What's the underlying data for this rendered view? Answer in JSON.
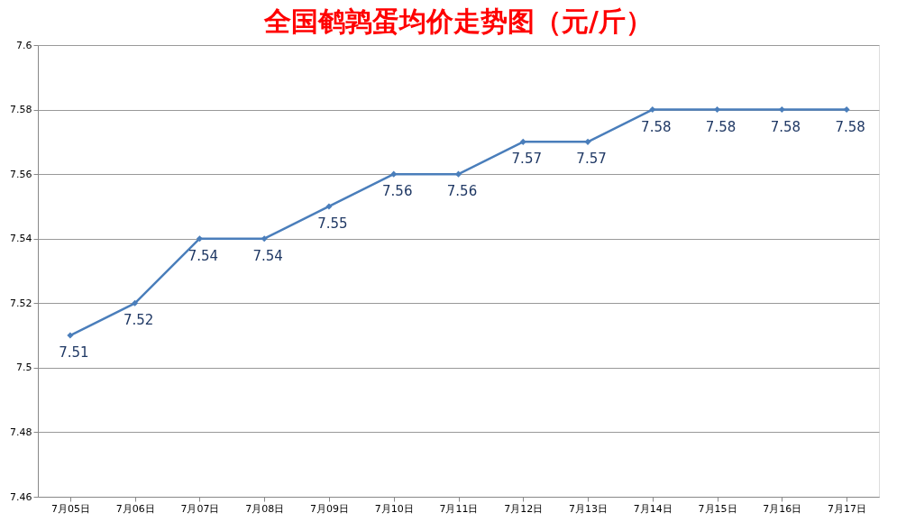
{
  "chart_data": {
    "type": "line",
    "title": "全国鹌鹑蛋均价走势图（元/斤）",
    "categories": [
      "7月05日",
      "7月06日",
      "7月07日",
      "7月08日",
      "7月09日",
      "7月10日",
      "7月11日",
      "7月12日",
      "7月13日",
      "7月14日",
      "7月15日",
      "7月16日",
      "7月17日"
    ],
    "series": [
      {
        "color": "#4a7ebb",
        "values": [
          7.51,
          7.52,
          7.54,
          7.54,
          7.55,
          7.56,
          7.56,
          7.57,
          7.57,
          7.58,
          7.58,
          7.58,
          7.58
        ]
      }
    ],
    "ylim": [
      7.46,
      7.6
    ],
    "yticks": [
      7.46,
      7.48,
      7.5,
      7.52,
      7.54,
      7.56,
      7.58,
      7.6
    ],
    "grid": "y",
    "marker": "diamond",
    "line_style": "solid",
    "data_labels": true
  }
}
